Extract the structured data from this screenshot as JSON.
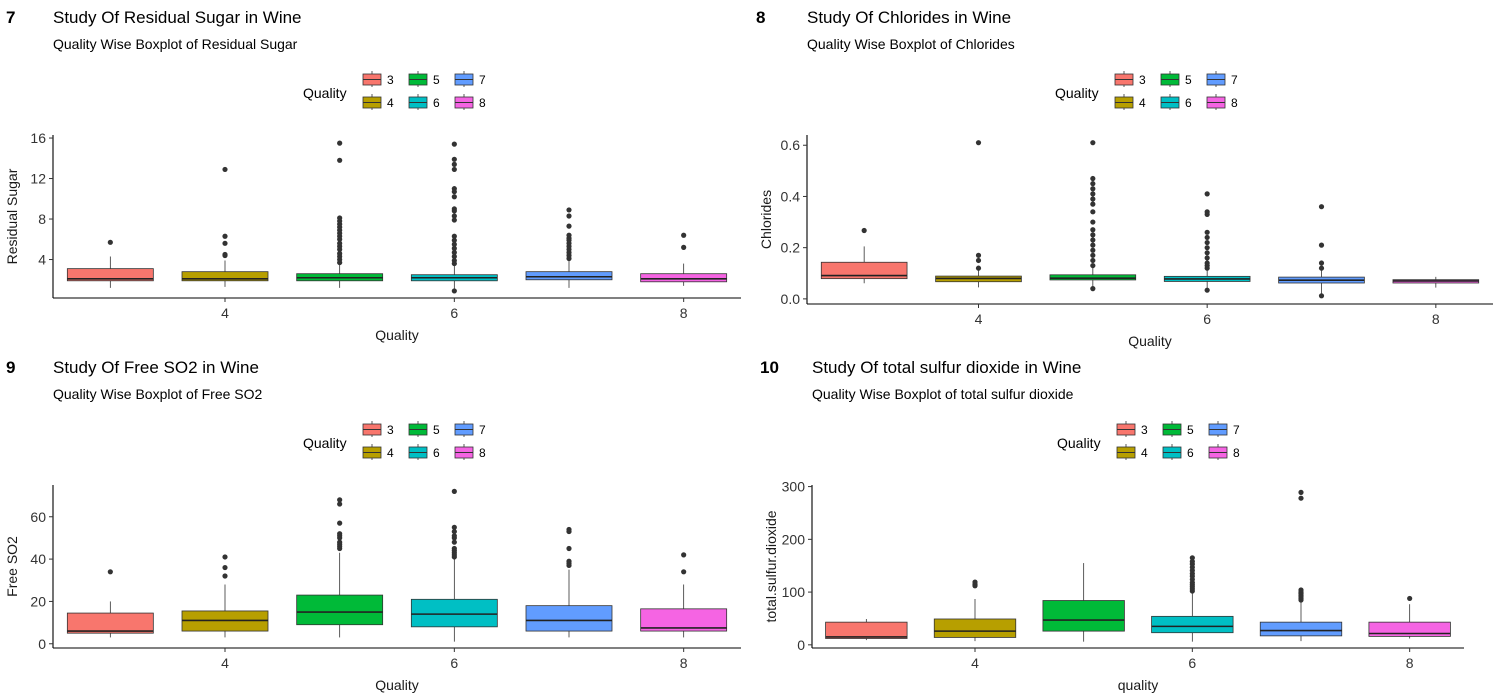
{
  "legend": {
    "title": "Quality",
    "entries": [
      {
        "label": "3",
        "color": "#F8766D"
      },
      {
        "label": "4",
        "color": "#B79F00"
      },
      {
        "label": "5",
        "color": "#00BA38"
      },
      {
        "label": "6",
        "color": "#00BFC4"
      },
      {
        "label": "7",
        "color": "#619CFF"
      },
      {
        "label": "8",
        "color": "#F564E3"
      }
    ]
  },
  "chart_data": [
    {
      "type": "boxplot",
      "panel_tag": "7",
      "title": "Study Of Residual Sugar in Wine",
      "subtitle": "Quality Wise Boxplot of Residual Sugar",
      "xlabel": "Quality",
      "ylabel": "Residual Sugar",
      "xlim": [
        2.5,
        8.5
      ],
      "ylim": [
        0.2,
        16.3
      ],
      "xticks": [
        4,
        6,
        8
      ],
      "yticks": [
        4,
        8,
        12,
        16
      ],
      "boxes": [
        {
          "quality": 3,
          "whisker_low": 1.2,
          "q1": 1.9,
          "median": 2.1,
          "q3": 3.1,
          "whisker_high": 4.3,
          "outliers": [
            5.7
          ]
        },
        {
          "quality": 4,
          "whisker_low": 1.3,
          "q1": 1.9,
          "median": 2.1,
          "q3": 2.8,
          "whisker_high": 3.9,
          "outliers": [
            4.4,
            4.5,
            5.6,
            6.3,
            12.9
          ]
        },
        {
          "quality": 5,
          "whisker_low": 1.2,
          "q1": 1.9,
          "median": 2.2,
          "q3": 2.6,
          "whisker_high": 3.6,
          "outliers": [
            3.7,
            4.0,
            4.3,
            4.6,
            5.0,
            5.3,
            5.6,
            6.0,
            6.3,
            6.6,
            6.9,
            7.2,
            7.5,
            7.8,
            8.1,
            13.8,
            15.5
          ]
        },
        {
          "quality": 6,
          "whisker_low": 0.9,
          "q1": 1.9,
          "median": 2.2,
          "q3": 2.5,
          "whisker_high": 3.4,
          "outliers": [
            0.9,
            3.6,
            3.9,
            4.3,
            4.7,
            5.1,
            5.5,
            5.9,
            6.3,
            7.9,
            8.3,
            8.8,
            9.0,
            10.2,
            10.7,
            11.0,
            12.9,
            13.4,
            13.9,
            15.4
          ]
        },
        {
          "quality": 7,
          "whisker_low": 1.2,
          "q1": 2.0,
          "median": 2.3,
          "q3": 2.8,
          "whisker_high": 3.9,
          "outliers": [
            4.1,
            4.4,
            4.7,
            5.0,
            5.3,
            5.6,
            5.9,
            6.1,
            6.4,
            7.3,
            8.3,
            8.9
          ]
        },
        {
          "quality": 8,
          "whisker_low": 1.4,
          "q1": 1.8,
          "median": 2.1,
          "q3": 2.6,
          "whisker_high": 3.6,
          "outliers": [
            5.2,
            6.4
          ]
        }
      ]
    },
    {
      "type": "boxplot",
      "panel_tag": "8",
      "title": "Study Of  Chlorides in Wine",
      "subtitle": "Quality Wise Boxplot of Chlorides",
      "xlabel": "Quality",
      "ylabel": "Chlorides",
      "xlim": [
        2.5,
        8.5
      ],
      "ylim": [
        -0.02,
        0.64
      ],
      "xticks": [
        4,
        6,
        8
      ],
      "yticks": [
        0.0,
        0.2,
        0.4,
        0.6
      ],
      "ytick_labels": [
        "0.0",
        "0.2",
        "0.4",
        "0.6"
      ],
      "boxes": [
        {
          "quality": 3,
          "whisker_low": 0.061,
          "q1": 0.079,
          "median": 0.091,
          "q3": 0.143,
          "whisker_high": 0.205,
          "outliers": [
            0.267
          ]
        },
        {
          "quality": 4,
          "whisker_low": 0.045,
          "q1": 0.067,
          "median": 0.08,
          "q3": 0.089,
          "whisker_high": 0.115,
          "outliers": [
            0.12,
            0.15,
            0.17,
            0.61
          ]
        },
        {
          "quality": 5,
          "whisker_low": 0.039,
          "q1": 0.074,
          "median": 0.081,
          "q3": 0.094,
          "whisker_high": 0.123,
          "outliers": [
            0.04,
            0.13,
            0.15,
            0.17,
            0.19,
            0.21,
            0.23,
            0.25,
            0.27,
            0.3,
            0.34,
            0.37,
            0.39,
            0.41,
            0.43,
            0.45,
            0.47,
            0.61
          ]
        },
        {
          "quality": 6,
          "whisker_low": 0.034,
          "q1": 0.068,
          "median": 0.078,
          "q3": 0.088,
          "whisker_high": 0.118,
          "outliers": [
            0.034,
            0.12,
            0.13,
            0.14,
            0.16,
            0.18,
            0.2,
            0.22,
            0.24,
            0.26,
            0.33,
            0.34,
            0.41
          ]
        },
        {
          "quality": 7,
          "whisker_low": 0.012,
          "q1": 0.062,
          "median": 0.073,
          "q3": 0.085,
          "whisker_high": 0.115,
          "outliers": [
            0.012,
            0.12,
            0.14,
            0.21,
            0.36
          ]
        },
        {
          "quality": 8,
          "whisker_low": 0.044,
          "q1": 0.062,
          "median": 0.07,
          "q3": 0.075,
          "whisker_high": 0.086,
          "outliers": []
        }
      ]
    },
    {
      "type": "boxplot",
      "panel_tag": "9",
      "title": "Study Of Free SO2 in Wine",
      "subtitle": "Quality Wise Boxplot of Free SO2",
      "xlabel": "Quality",
      "ylabel": "Free SO2",
      "xlim": [
        2.5,
        8.5
      ],
      "ylim": [
        -2,
        75
      ],
      "xticks": [
        4,
        6,
        8
      ],
      "yticks": [
        0,
        20,
        40,
        60
      ],
      "boxes": [
        {
          "quality": 3,
          "whisker_low": 3,
          "q1": 5,
          "median": 6,
          "q3": 14.5,
          "whisker_high": 20,
          "outliers": [
            34
          ]
        },
        {
          "quality": 4,
          "whisker_low": 3,
          "q1": 6,
          "median": 11,
          "q3": 15.5,
          "whisker_high": 28,
          "outliers": [
            32,
            36,
            41
          ]
        },
        {
          "quality": 5,
          "whisker_low": 3,
          "q1": 9,
          "median": 15,
          "q3": 23,
          "whisker_high": 43,
          "outliers": [
            45,
            46,
            47,
            48,
            50,
            51,
            52,
            57,
            66,
            68
          ]
        },
        {
          "quality": 6,
          "whisker_low": 1,
          "q1": 8,
          "median": 14,
          "q3": 21,
          "whisker_high": 40,
          "outliers": [
            41,
            42,
            43,
            44,
            45,
            48,
            50,
            51,
            53,
            55,
            72
          ]
        },
        {
          "quality": 7,
          "whisker_low": 3,
          "q1": 6,
          "median": 11,
          "q3": 18,
          "whisker_high": 35,
          "outliers": [
            37,
            38,
            39,
            45,
            53,
            54
          ]
        },
        {
          "quality": 8,
          "whisker_low": 3,
          "q1": 6,
          "median": 7.5,
          "q3": 16.5,
          "whisker_high": 28,
          "outliers": [
            34,
            42
          ]
        }
      ]
    },
    {
      "type": "boxplot",
      "panel_tag": "10",
      "title": "Study Of total sulfur dioxide in Wine",
      "subtitle": "Quality Wise Boxplot of total sulfur dioxide",
      "xlabel": "quality",
      "ylabel": "total.sulfur.dioxide",
      "xlim": [
        2.5,
        8.5
      ],
      "ylim": [
        -6,
        303
      ],
      "xticks": [
        4,
        6,
        8
      ],
      "yticks": [
        0,
        100,
        200,
        300
      ],
      "boxes": [
        {
          "quality": 3,
          "whisker_low": 9,
          "q1": 12,
          "median": 15,
          "q3": 43,
          "whisker_high": 49,
          "outliers": []
        },
        {
          "quality": 4,
          "whisker_low": 7,
          "q1": 14,
          "median": 26,
          "q3": 49,
          "whisker_high": 87,
          "outliers": [
            112,
            115,
            119
          ]
        },
        {
          "quality": 5,
          "whisker_low": 6,
          "q1": 26,
          "median": 47,
          "q3": 84,
          "whisker_high": 155,
          "outliers": []
        },
        {
          "quality": 6,
          "whisker_low": 6,
          "q1": 23,
          "median": 35,
          "q3": 54,
          "whisker_high": 100,
          "outliers": [
            102,
            106,
            110,
            114,
            118,
            124,
            130,
            135,
            141,
            147,
            153,
            158,
            165
          ]
        },
        {
          "quality": 7,
          "whisker_low": 7,
          "q1": 17,
          "median": 27,
          "q3": 43,
          "whisker_high": 82,
          "outliers": [
            85,
            88,
            91,
            94,
            97,
            100,
            104,
            278,
            289
          ]
        },
        {
          "quality": 8,
          "whisker_low": 12,
          "q1": 16,
          "median": 21.5,
          "q3": 43,
          "whisker_high": 77,
          "outliers": [
            88
          ]
        }
      ]
    }
  ]
}
